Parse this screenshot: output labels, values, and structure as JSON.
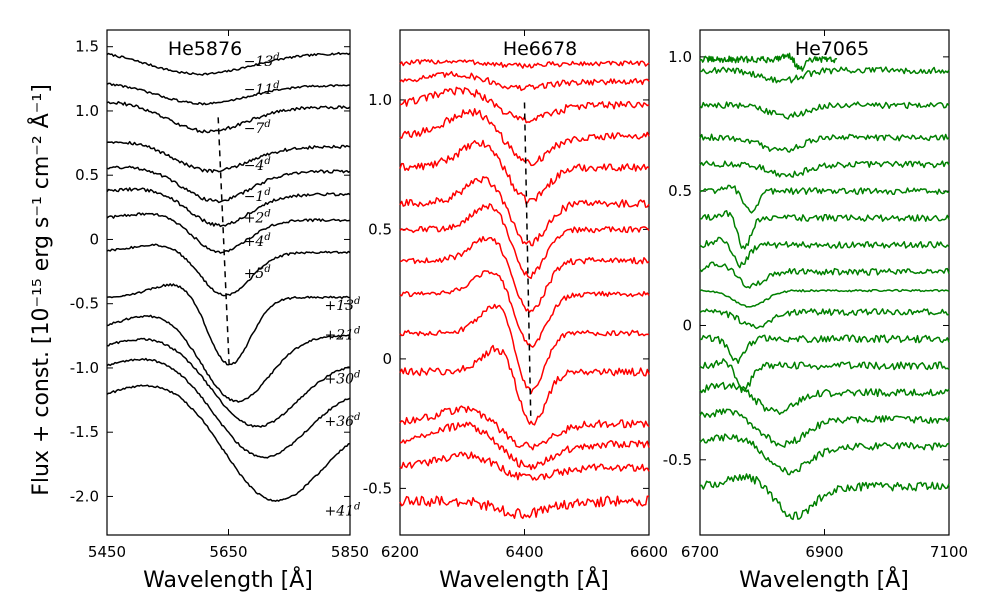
{
  "ylabel": "Flux + const. [10⁻¹⁵ erg s⁻¹ cm⁻² Å⁻¹]",
  "chart_data": [
    {
      "type": "line",
      "title": "He5876",
      "xlabel": "Wavelength [Å]",
      "xlim": [
        5450,
        5850
      ],
      "ylim": [
        -2.3,
        1.63
      ],
      "xticks": [
        5450,
        5650,
        5850
      ],
      "yticks": [
        1.5,
        1.0,
        0.5,
        0,
        -0.5,
        -1.0,
        -1.5,
        -2.0
      ],
      "ytick_labels": [
        "1.5",
        "1.0",
        "0.5",
        "0",
        "-0.5",
        "-1.0",
        "-1.5",
        "-2.0"
      ],
      "color": "#000000",
      "line_center": 5600,
      "guide": [
        [
          5633,
          0.95
        ],
        [
          5651,
          -0.97
        ]
      ],
      "series": [
        {
          "epoch": "−13",
          "base": 1.45,
          "depth": 0.17,
          "center": 5600,
          "width": 85,
          "bump": 0.03,
          "noise": 0.008,
          "label_at": [
            5675,
            1.35
          ]
        },
        {
          "epoch": "−11",
          "base": 1.2,
          "depth": 0.15,
          "center": 5605,
          "width": 75,
          "bump": 0.03,
          "noise": 0.008,
          "label_at": [
            5675,
            1.13
          ]
        },
        {
          "epoch": "−7",
          "base": 1.03,
          "depth": 0.2,
          "center": 5612,
          "width": 65,
          "bump": 0.05,
          "noise": 0.012,
          "label_at": [
            5675,
            0.83
          ]
        },
        {
          "epoch": "−4",
          "base": 0.72,
          "depth": 0.2,
          "center": 5620,
          "width": 60,
          "bump": 0.05,
          "noise": 0.012,
          "label_at": [
            5675,
            0.54
          ]
        },
        {
          "epoch": "−1",
          "base": 0.53,
          "depth": 0.24,
          "center": 5628,
          "width": 55,
          "bump": 0.04,
          "noise": 0.012,
          "label_at": [
            5675,
            0.3
          ]
        },
        {
          "epoch": "+2",
          "base": 0.35,
          "depth": 0.25,
          "center": 5633,
          "width": 50,
          "bump": 0.05,
          "noise": 0.012,
          "label_at": [
            5675,
            0.13
          ]
        },
        {
          "epoch": "+4",
          "base": 0.15,
          "depth": 0.26,
          "center": 5635,
          "width": 45,
          "bump": 0.06,
          "noise": 0.01,
          "label_at": [
            5675,
            -0.05
          ]
        },
        {
          "epoch": "+5",
          "base": -0.1,
          "depth": 0.35,
          "center": 5643,
          "width": 42,
          "bump": 0.07,
          "noise": 0.008,
          "label_at": [
            5675,
            -0.3
          ]
        },
        {
          "epoch": "+13",
          "base": -0.45,
          "depth": 0.55,
          "center": 5650,
          "width": 35,
          "bump": 0.12,
          "noise": 0.008,
          "label_at": [
            5808,
            -0.55
          ]
        },
        {
          "epoch": "+21",
          "base": -0.75,
          "depth": 0.55,
          "center": 5660,
          "width": 55,
          "bump": 0.18,
          "noise": 0.008,
          "label_at": [
            5808,
            -0.78
          ]
        },
        {
          "epoch": "+30",
          "base": -0.95,
          "depth": 0.55,
          "center": 5690,
          "width": 70,
          "bump": 0.2,
          "noise": 0.008,
          "label_at": [
            5808,
            -1.12
          ]
        },
        {
          "epoch": "+36",
          "base": -1.15,
          "depth": 0.6,
          "center": 5700,
          "width": 75,
          "bump": 0.25,
          "noise": 0.008,
          "label_at": [
            5808,
            -1.45
          ]
        },
        {
          "epoch": "+41",
          "base": -1.4,
          "depth": 0.7,
          "center": 5720,
          "width": 80,
          "bump": 0.3,
          "noise": 0.008,
          "label_at": [
            5808,
            -2.15
          ]
        }
      ]
    },
    {
      "type": "line",
      "title": "He6678",
      "xlabel": "Wavelength [Å]",
      "xlim": [
        6200,
        6600
      ],
      "ylim": [
        -0.68,
        1.27
      ],
      "xticks": [
        6200,
        6400,
        6600
      ],
      "yticks": [
        1.0,
        0.5,
        0,
        -0.5
      ],
      "ytick_labels": [
        "1.0",
        "0.5",
        "0",
        "-0.5"
      ],
      "color": "#ff0000",
      "guide": [
        [
          6400,
          0.99
        ],
        [
          6410,
          -0.22
        ]
      ],
      "series": [
        {
          "base": 1.14,
          "depth": 0.01,
          "center": 6380,
          "width": 40,
          "bump": 0.01,
          "noise": 0.01
        },
        {
          "base": 1.07,
          "depth": 0.03,
          "center": 6385,
          "width": 40,
          "bump": 0.03,
          "noise": 0.012
        },
        {
          "base": 0.98,
          "depth": 0.07,
          "center": 6395,
          "width": 40,
          "bump": 0.06,
          "noise": 0.015
        },
        {
          "base": 0.86,
          "depth": 0.12,
          "center": 6400,
          "width": 35,
          "bump": 0.1,
          "noise": 0.015
        },
        {
          "base": 0.74,
          "depth": 0.15,
          "center": 6402,
          "width": 30,
          "bump": 0.1,
          "noise": 0.015
        },
        {
          "base": 0.6,
          "depth": 0.18,
          "center": 6404,
          "width": 28,
          "bump": 0.1,
          "noise": 0.015
        },
        {
          "base": 0.5,
          "depth": 0.2,
          "center": 6405,
          "width": 25,
          "bump": 0.1,
          "noise": 0.012
        },
        {
          "base": 0.38,
          "depth": 0.22,
          "center": 6406,
          "width": 25,
          "bump": 0.1,
          "noise": 0.012
        },
        {
          "base": 0.25,
          "depth": 0.22,
          "center": 6408,
          "width": 25,
          "bump": 0.1,
          "noise": 0.01
        },
        {
          "base": 0.1,
          "depth": 0.25,
          "center": 6408,
          "width": 22,
          "bump": 0.12,
          "noise": 0.01
        },
        {
          "base": -0.05,
          "depth": 0.22,
          "center": 6410,
          "width": 22,
          "bump": 0.1,
          "noise": 0.015
        },
        {
          "base": -0.25,
          "depth": 0.1,
          "center": 6400,
          "width": 40,
          "bump": 0.06,
          "noise": 0.015
        },
        {
          "base": -0.33,
          "depth": 0.1,
          "center": 6400,
          "width": 40,
          "bump": 0.08,
          "noise": 0.015
        },
        {
          "base": -0.42,
          "depth": 0.05,
          "center": 6400,
          "width": 40,
          "bump": 0.05,
          "noise": 0.015
        },
        {
          "base": -0.55,
          "depth": 0.05,
          "center": 6400,
          "width": 40,
          "bump": 0.0,
          "noise": 0.02
        }
      ]
    },
    {
      "type": "line",
      "title": "He7065",
      "xlabel": "Wavelength [Å]",
      "xlim": [
        6700,
        7100
      ],
      "ylim": [
        -0.78,
        1.1
      ],
      "xticks": [
        6700,
        6900,
        7100
      ],
      "yticks": [
        1.0,
        0.5,
        0,
        -0.5
      ],
      "ytick_labels": [
        "1.0",
        "0.5",
        "0",
        "-0.5"
      ],
      "color": "#008000",
      "series": [
        {
          "base": 0.99,
          "depth": 0.04,
          "center": 6860,
          "width": 8,
          "bump": 0.02,
          "noise": 0.012,
          "xmax": 6920
        },
        {
          "base": 0.95,
          "depth": 0.04,
          "center": 6830,
          "width": 30,
          "bump": 0.0,
          "noise": 0.012
        },
        {
          "base": 0.82,
          "depth": 0.04,
          "center": 6840,
          "width": 30,
          "bump": 0.0,
          "noise": 0.012
        },
        {
          "base": 0.7,
          "depth": 0.05,
          "center": 6830,
          "width": 30,
          "bump": 0.0,
          "noise": 0.012
        },
        {
          "base": 0.6,
          "depth": 0.04,
          "center": 6840,
          "width": 30,
          "bump": 0.0,
          "noise": 0.012
        },
        {
          "base": 0.5,
          "depth": 0.08,
          "center": 6780,
          "width": 12,
          "bump": 0.02,
          "noise": 0.012
        },
        {
          "base": 0.4,
          "depth": 0.12,
          "center": 6770,
          "width": 10,
          "bump": 0.02,
          "noise": 0.012
        },
        {
          "base": 0.3,
          "depth": 0.08,
          "center": 6765,
          "width": 12,
          "bump": 0.02,
          "noise": 0.012
        },
        {
          "base": 0.2,
          "depth": 0.06,
          "center": 6780,
          "width": 20,
          "bump": 0.03,
          "noise": 0.012
        },
        {
          "base": 0.13,
          "depth": 0.06,
          "center": 6780,
          "width": 25,
          "bump": 0.0,
          "noise": 0.004
        },
        {
          "base": 0.05,
          "depth": 0.05,
          "center": 6790,
          "width": 25,
          "bump": 0.0,
          "noise": 0.012
        },
        {
          "base": -0.05,
          "depth": 0.08,
          "center": 6760,
          "width": 12,
          "bump": 0.0,
          "noise": 0.014
        },
        {
          "base": -0.15,
          "depth": 0.09,
          "center": 6770,
          "width": 12,
          "bump": 0.02,
          "noise": 0.014
        },
        {
          "base": -0.25,
          "depth": 0.08,
          "center": 6820,
          "width": 30,
          "bump": 0.03,
          "noise": 0.014
        },
        {
          "base": -0.35,
          "depth": 0.1,
          "center": 6830,
          "width": 35,
          "bump": 0.03,
          "noise": 0.014
        },
        {
          "base": -0.45,
          "depth": 0.1,
          "center": 6840,
          "width": 35,
          "bump": 0.04,
          "noise": 0.014
        },
        {
          "base": -0.6,
          "depth": 0.12,
          "center": 6850,
          "width": 30,
          "bump": 0.04,
          "noise": 0.016
        }
      ]
    }
  ]
}
